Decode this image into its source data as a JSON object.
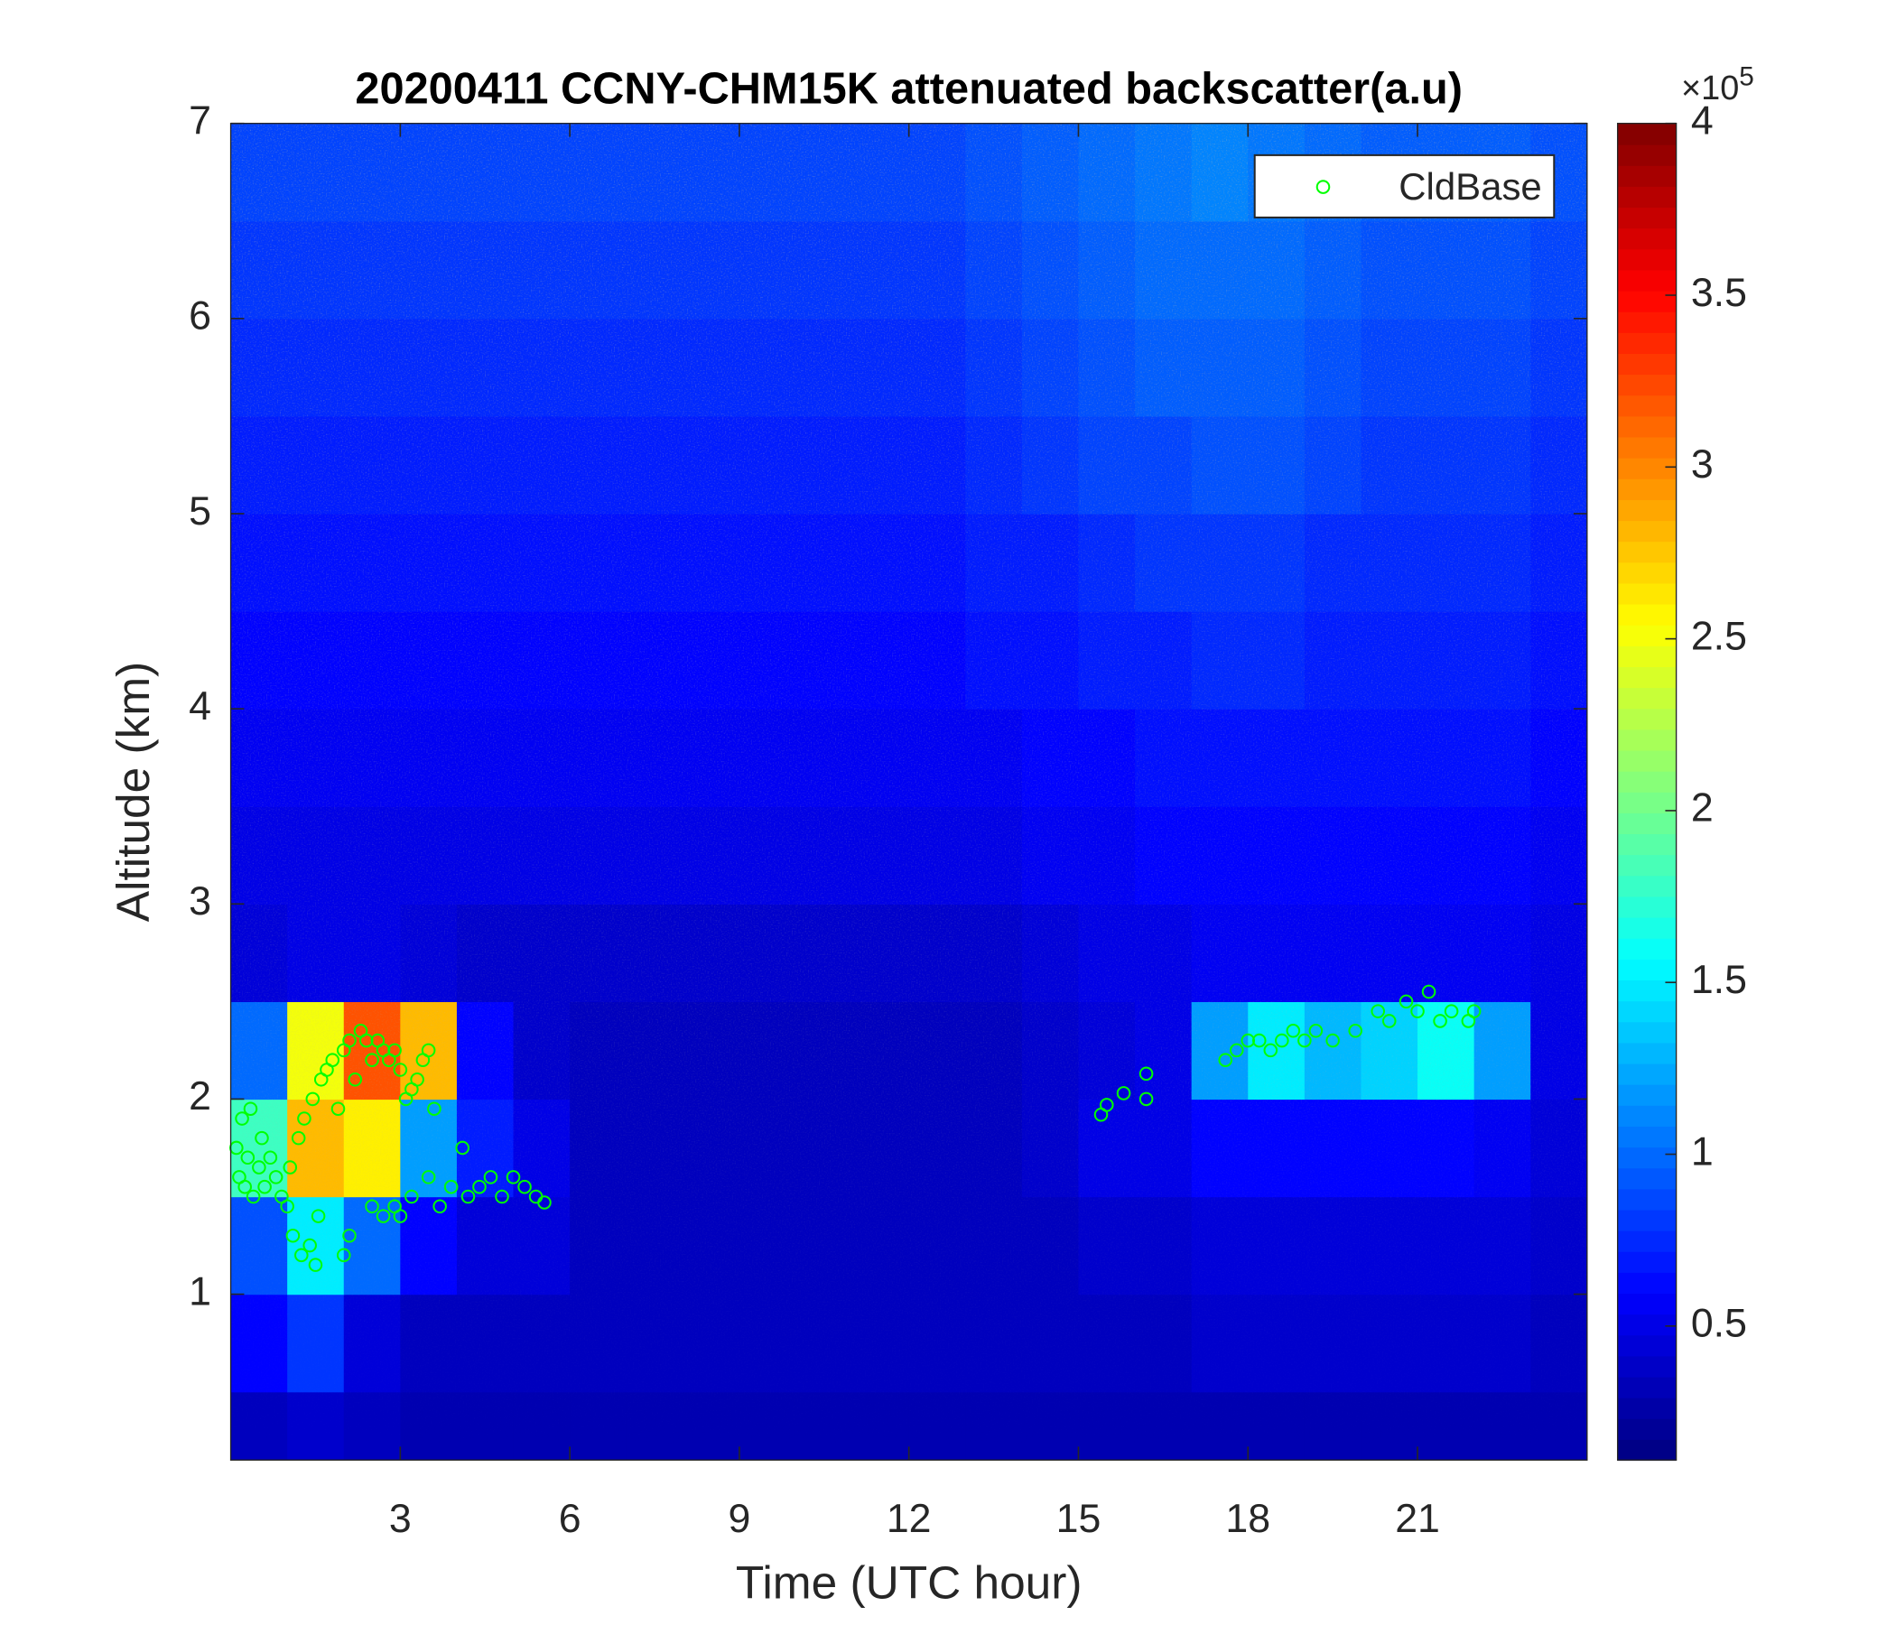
{
  "chart_data": {
    "type": "heatmap",
    "title": "20200411 CCNY-CHM15K attenuated backscatter(a.u)",
    "xlabel": "Time (UTC hour)",
    "ylabel": "Altitude (km)",
    "xlim": [
      0,
      24
    ],
    "xticks": [
      3,
      6,
      9,
      12,
      15,
      18,
      21
    ],
    "ylim": [
      0.15,
      7
    ],
    "yticks": [
      1,
      2,
      3,
      4,
      5,
      6,
      7
    ],
    "x_edges": [
      0,
      1,
      2,
      3,
      4,
      5,
      6,
      7,
      8,
      9,
      10,
      11,
      12,
      13,
      14,
      15,
      16,
      17,
      18,
      19,
      20,
      21,
      22,
      23,
      24
    ],
    "y_edges": [
      0.15,
      0.5,
      1,
      1.5,
      2,
      2.5,
      3,
      3.5,
      4,
      4.5,
      5,
      5.5,
      6,
      6.5,
      7
    ],
    "z": [
      [
        0.35,
        0.4,
        0.35,
        0.3,
        0.3,
        0.3,
        0.3,
        0.3,
        0.3,
        0.3,
        0.3,
        0.3,
        0.3,
        0.3,
        0.3,
        0.3,
        0.3,
        0.3,
        0.3,
        0.3,
        0.3,
        0.3,
        0.3,
        0.3
      ],
      [
        0.6,
        0.8,
        0.45,
        0.35,
        0.35,
        0.35,
        0.35,
        0.35,
        0.35,
        0.35,
        0.35,
        0.35,
        0.35,
        0.35,
        0.35,
        0.35,
        0.35,
        0.4,
        0.4,
        0.4,
        0.4,
        0.4,
        0.4,
        0.35
      ],
      [
        0.9,
        1.5,
        1.0,
        0.6,
        0.45,
        0.45,
        0.35,
        0.35,
        0.35,
        0.35,
        0.35,
        0.35,
        0.35,
        0.35,
        0.35,
        0.4,
        0.4,
        0.45,
        0.45,
        0.45,
        0.45,
        0.45,
        0.45,
        0.4
      ],
      [
        1.8,
        2.8,
        2.6,
        1.2,
        0.7,
        0.5,
        0.35,
        0.35,
        0.35,
        0.35,
        0.35,
        0.35,
        0.35,
        0.35,
        0.4,
        0.5,
        0.5,
        0.6,
        0.6,
        0.6,
        0.6,
        0.6,
        0.55,
        0.45
      ],
      [
        1.0,
        2.5,
        3.2,
        2.8,
        0.6,
        0.4,
        0.35,
        0.35,
        0.35,
        0.35,
        0.35,
        0.35,
        0.35,
        0.35,
        0.4,
        0.45,
        0.5,
        1.2,
        1.5,
        1.3,
        1.4,
        1.6,
        1.2,
        0.5
      ],
      [
        0.45,
        0.5,
        0.5,
        0.45,
        0.4,
        0.4,
        0.4,
        0.4,
        0.4,
        0.4,
        0.4,
        0.4,
        0.4,
        0.4,
        0.45,
        0.5,
        0.5,
        0.55,
        0.55,
        0.55,
        0.55,
        0.55,
        0.55,
        0.5
      ],
      [
        0.5,
        0.5,
        0.5,
        0.5,
        0.5,
        0.5,
        0.5,
        0.5,
        0.5,
        0.5,
        0.5,
        0.5,
        0.5,
        0.5,
        0.55,
        0.55,
        0.6,
        0.6,
        0.6,
        0.6,
        0.6,
        0.6,
        0.6,
        0.55
      ],
      [
        0.55,
        0.55,
        0.55,
        0.55,
        0.55,
        0.55,
        0.55,
        0.55,
        0.55,
        0.55,
        0.55,
        0.55,
        0.55,
        0.55,
        0.6,
        0.6,
        0.65,
        0.65,
        0.65,
        0.65,
        0.65,
        0.65,
        0.65,
        0.6
      ],
      [
        0.6,
        0.6,
        0.6,
        0.6,
        0.6,
        0.6,
        0.6,
        0.6,
        0.6,
        0.6,
        0.6,
        0.6,
        0.6,
        0.65,
        0.65,
        0.7,
        0.7,
        0.75,
        0.75,
        0.7,
        0.7,
        0.7,
        0.7,
        0.65
      ],
      [
        0.65,
        0.65,
        0.65,
        0.65,
        0.65,
        0.65,
        0.65,
        0.65,
        0.65,
        0.65,
        0.65,
        0.65,
        0.65,
        0.7,
        0.7,
        0.75,
        0.8,
        0.8,
        0.8,
        0.75,
        0.75,
        0.75,
        0.75,
        0.7
      ],
      [
        0.7,
        0.7,
        0.7,
        0.7,
        0.7,
        0.7,
        0.7,
        0.7,
        0.7,
        0.7,
        0.7,
        0.7,
        0.7,
        0.75,
        0.8,
        0.85,
        0.85,
        0.9,
        0.9,
        0.85,
        0.8,
        0.8,
        0.8,
        0.75
      ],
      [
        0.75,
        0.75,
        0.75,
        0.75,
        0.75,
        0.75,
        0.75,
        0.75,
        0.75,
        0.75,
        0.75,
        0.75,
        0.75,
        0.8,
        0.85,
        0.9,
        0.95,
        0.95,
        0.95,
        0.9,
        0.85,
        0.85,
        0.85,
        0.8
      ],
      [
        0.8,
        0.8,
        0.8,
        0.8,
        0.8,
        0.8,
        0.8,
        0.8,
        0.8,
        0.8,
        0.8,
        0.8,
        0.8,
        0.85,
        0.9,
        0.95,
        1.0,
        1.0,
        1.0,
        0.95,
        0.9,
        0.9,
        0.9,
        0.85
      ],
      [
        0.85,
        0.85,
        0.85,
        0.85,
        0.85,
        0.85,
        0.85,
        0.85,
        0.85,
        0.85,
        0.85,
        0.85,
        0.85,
        0.9,
        0.95,
        1.0,
        1.05,
        1.1,
        1.05,
        1.0,
        0.95,
        0.95,
        0.95,
        0.9
      ]
    ],
    "colormap": "jet",
    "clim": [
      0.11,
      4
    ],
    "cticks": [
      0.5,
      1,
      1.5,
      2,
      2.5,
      3,
      3.5,
      4
    ],
    "cexponent": {
      "base": "×10",
      "power": "5"
    },
    "legend": "upper right",
    "series": [
      {
        "name": "CldBase",
        "type": "scatter",
        "color": "#00ff00",
        "x": [
          0.1,
          0.15,
          0.2,
          0.25,
          0.3,
          0.35,
          0.4,
          0.5,
          0.55,
          0.6,
          0.7,
          0.8,
          0.9,
          1.0,
          1.05,
          1.1,
          1.2,
          1.25,
          1.3,
          1.4,
          1.45,
          1.5,
          1.55,
          1.6,
          1.7,
          1.8,
          1.9,
          2.0,
          2.1,
          2.2,
          2.3,
          2.4,
          2.5,
          2.6,
          2.7,
          2.8,
          2.9,
          3.0,
          3.1,
          3.2,
          3.3,
          3.4,
          3.5,
          3.6,
          2.0,
          2.1,
          2.5,
          2.7,
          2.9,
          3.0,
          3.2,
          3.5,
          3.7,
          3.9,
          4.1,
          4.2,
          4.4,
          4.6,
          4.8,
          5.0,
          5.2,
          5.4,
          5.55,
          15.4,
          15.5,
          15.8,
          16.2,
          16.2,
          17.6,
          17.8,
          18.0,
          18.2,
          18.4,
          18.6,
          18.8,
          19.0,
          19.2,
          19.5,
          19.9,
          20.3,
          20.5,
          20.8,
          21.0,
          21.2,
          21.4,
          21.6,
          21.9,
          22.0
        ],
        "y": [
          1.75,
          1.6,
          1.9,
          1.55,
          1.7,
          1.95,
          1.5,
          1.65,
          1.8,
          1.55,
          1.7,
          1.6,
          1.5,
          1.45,
          1.65,
          1.3,
          1.8,
          1.2,
          1.9,
          1.25,
          2.0,
          1.15,
          1.4,
          2.1,
          2.15,
          2.2,
          1.95,
          2.25,
          2.3,
          2.1,
          2.35,
          2.3,
          2.2,
          2.3,
          2.25,
          2.2,
          2.25,
          2.15,
          2.0,
          2.05,
          2.1,
          2.2,
          2.25,
          1.95,
          1.2,
          1.3,
          1.45,
          1.4,
          1.45,
          1.4,
          1.5,
          1.6,
          1.45,
          1.55,
          1.75,
          1.5,
          1.55,
          1.6,
          1.5,
          1.6,
          1.55,
          1.5,
          1.47,
          1.92,
          1.97,
          2.03,
          2.0,
          2.13,
          2.2,
          2.25,
          2.3,
          2.3,
          2.25,
          2.3,
          2.35,
          2.3,
          2.35,
          2.3,
          2.35,
          2.45,
          2.4,
          2.5,
          2.45,
          2.55,
          2.4,
          2.45,
          2.4,
          2.45
        ]
      }
    ]
  }
}
